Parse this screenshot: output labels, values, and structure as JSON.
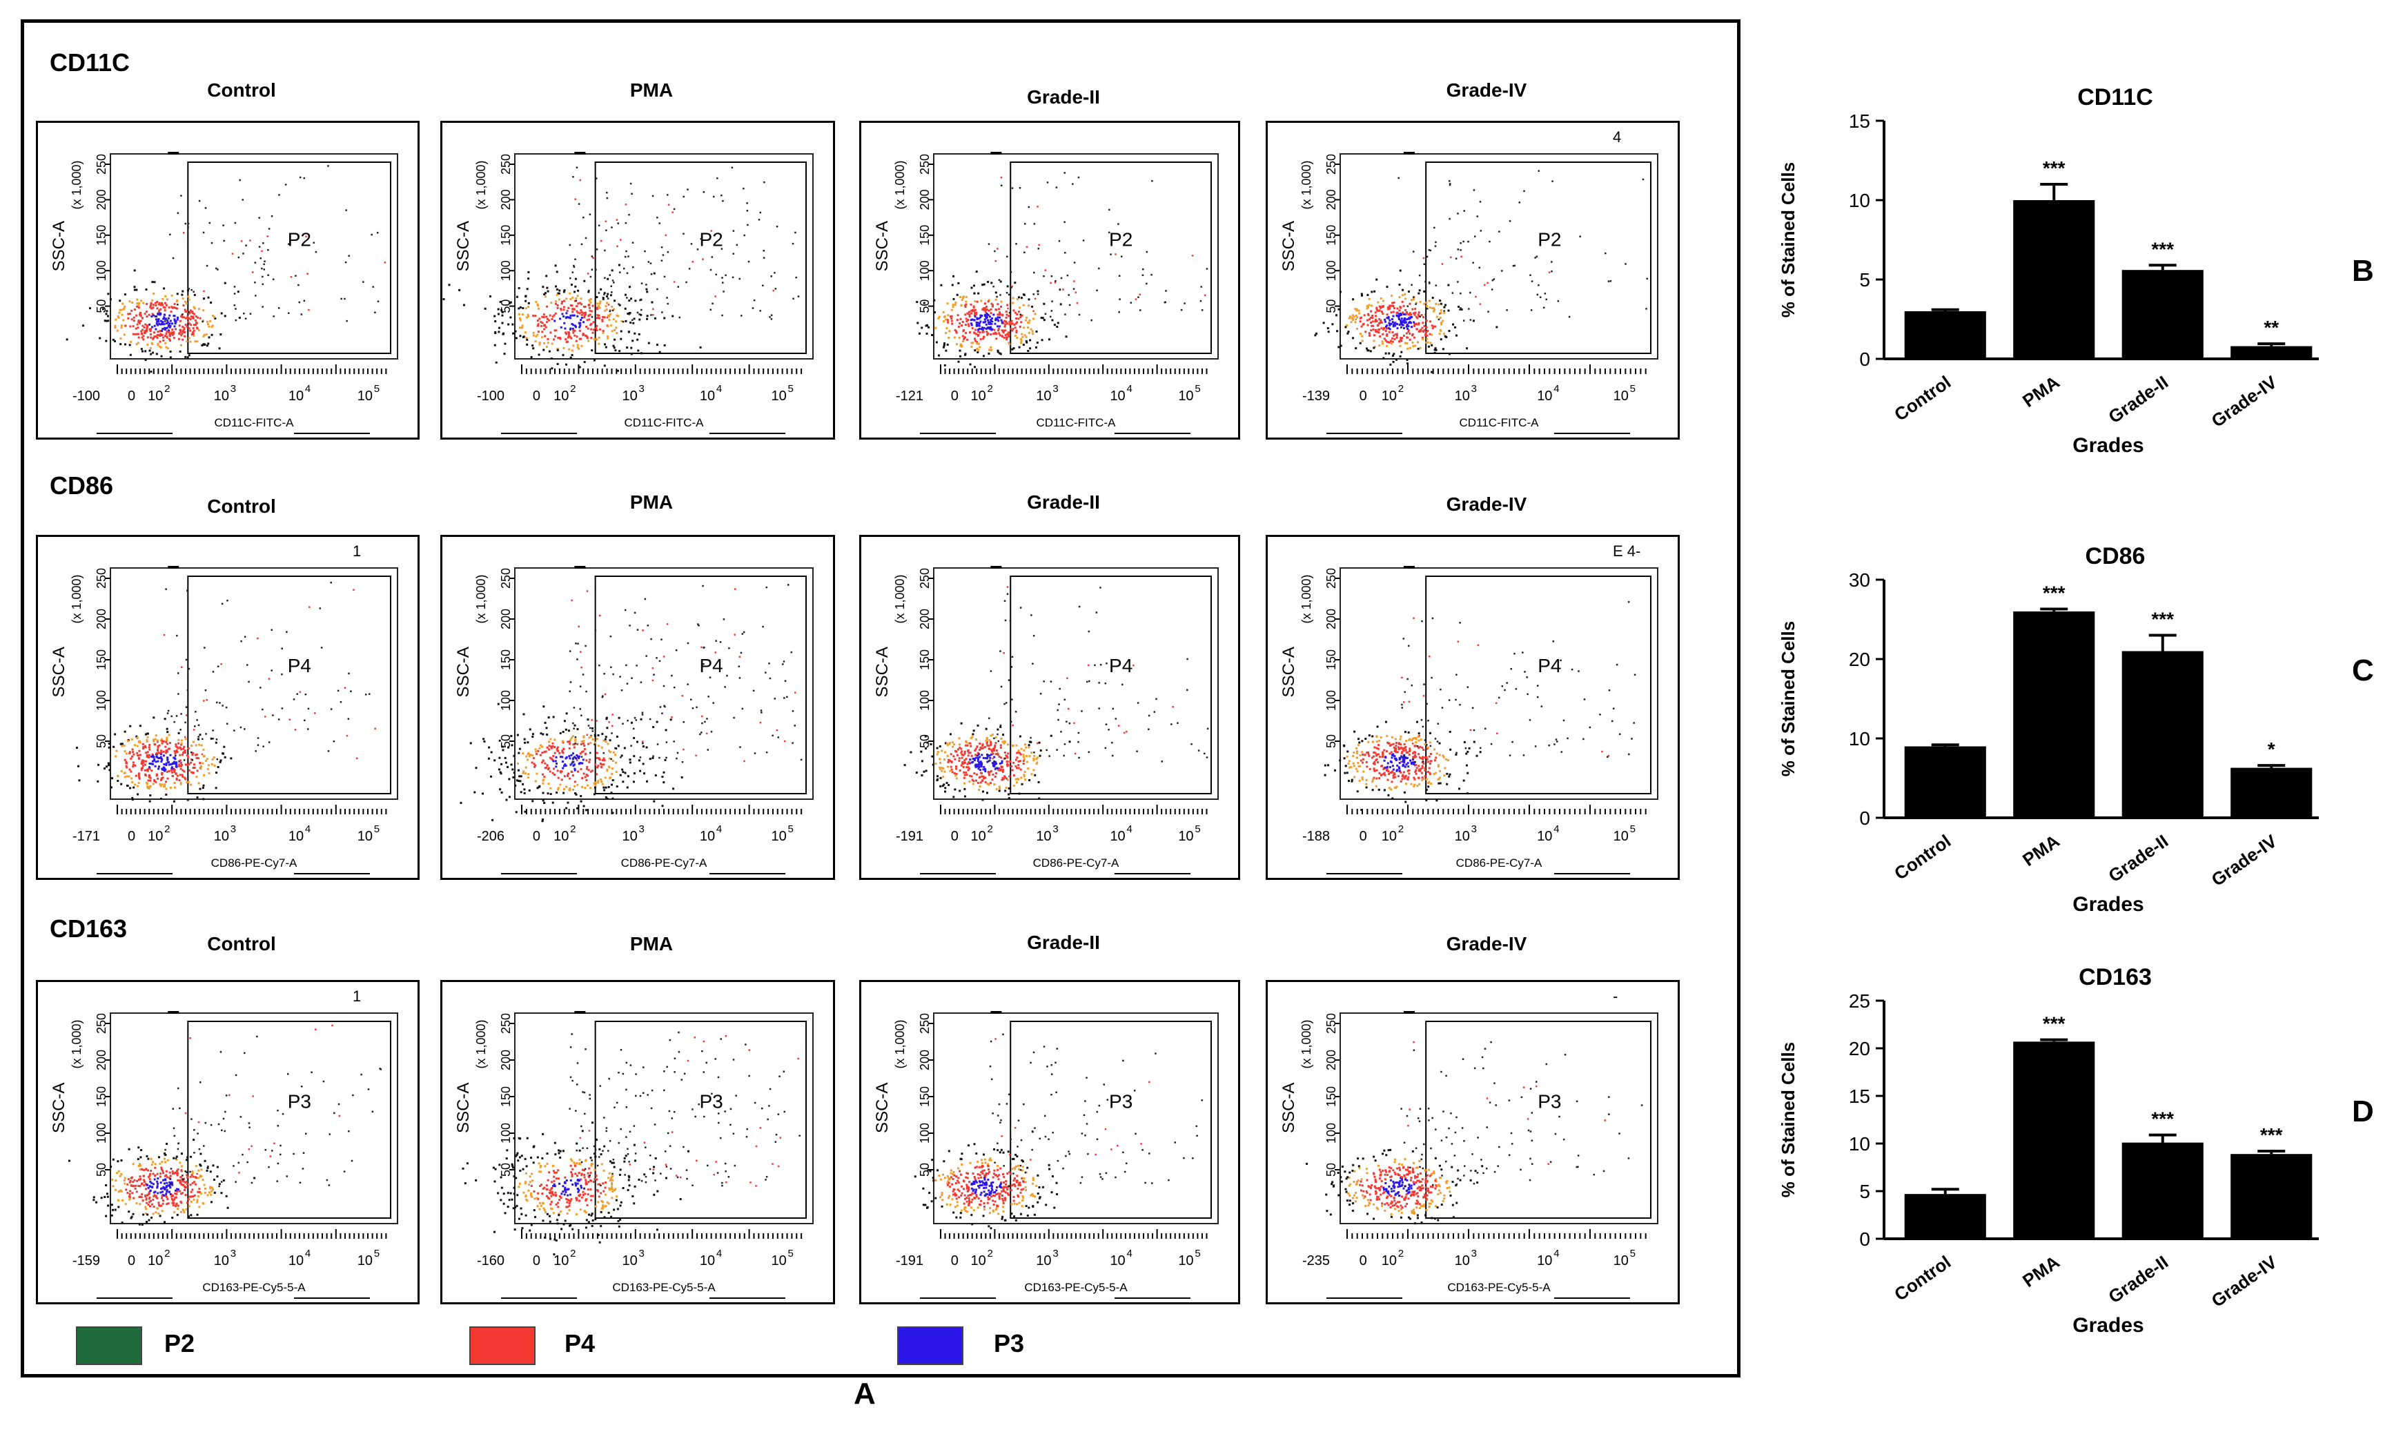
{
  "panel_labels": {
    "A": "A",
    "B": "B",
    "C": "C",
    "D": "D"
  },
  "legend": [
    {
      "label": "P2",
      "color": "#1f6b3c"
    },
    {
      "label": "P4",
      "color": "#f23a33"
    },
    {
      "label": "P3",
      "color": "#2a17e8"
    }
  ],
  "facs_axes": {
    "y_label": "SSC-A",
    "y_unit": "(x 1,000)",
    "y_ticks": [
      "250",
      "200",
      "150",
      "100",
      "50"
    ],
    "x_ticks_common": [
      "0",
      "10",
      "10",
      "10",
      "10"
    ],
    "x_exp": [
      "",
      "2",
      "3",
      "4",
      "5"
    ]
  },
  "facs_rows": [
    {
      "marker": "CD11C",
      "x_label": "CD11C-FITC-A",
      "gate": "P2",
      "plots": [
        {
          "condition": "Control",
          "x_min": "-100",
          "corner": ""
        },
        {
          "condition": "PMA",
          "x_min": "-100",
          "corner": ""
        },
        {
          "condition": "Grade-II",
          "x_min": "-121",
          "corner": ""
        },
        {
          "condition": "Grade-IV",
          "x_min": "-139",
          "corner": "4"
        }
      ]
    },
    {
      "marker": "CD86",
      "x_label": "CD86-PE-Cy7-A",
      "gate": "P4",
      "plots": [
        {
          "condition": "Control",
          "x_min": "-171",
          "corner": "1"
        },
        {
          "condition": "PMA",
          "x_min": "-206",
          "corner": ""
        },
        {
          "condition": "Grade-II",
          "x_min": "-191",
          "corner": ""
        },
        {
          "condition": "Grade-IV",
          "x_min": "-188",
          "corner": "E 4-"
        }
      ]
    },
    {
      "marker": "CD163",
      "x_label": "CD163-PE-Cy5-5-A",
      "gate": "P3",
      "plots": [
        {
          "condition": "Control",
          "x_min": "-159",
          "corner": "1"
        },
        {
          "condition": "PMA",
          "x_min": "-160",
          "corner": ""
        },
        {
          "condition": "Grade-II",
          "x_min": "-191",
          "corner": ""
        },
        {
          "condition": "Grade-IV",
          "x_min": "-235",
          "corner": "-"
        }
      ]
    }
  ],
  "chart_data": [
    {
      "type": "bar",
      "panel": "B",
      "title": "CD11C",
      "ylabel": "% of Stained Cells",
      "xlabel": "Grades",
      "categories": [
        "Control",
        "PMA",
        "Grade-II",
        "Grade-IV"
      ],
      "values": [
        3,
        10,
        5.6,
        0.8
      ],
      "errors": [
        0.1,
        1.0,
        0.3,
        0.15
      ],
      "significance": [
        "",
        "***",
        "***",
        "**"
      ],
      "ylim": [
        0,
        15
      ],
      "yticks": [
        0,
        5,
        10,
        15
      ]
    },
    {
      "type": "bar",
      "panel": "C",
      "title": "CD86",
      "ylabel": "% of Stained Cells",
      "xlabel": "Grades",
      "categories": [
        "Control",
        "PMA",
        "Grade-II",
        "Grade-IV"
      ],
      "values": [
        9,
        26,
        21,
        6.3
      ],
      "errors": [
        0.2,
        0.3,
        2.0,
        0.3
      ],
      "significance": [
        "",
        "***",
        "***",
        "*"
      ],
      "ylim": [
        0,
        30
      ],
      "yticks": [
        0,
        10,
        20,
        30
      ]
    },
    {
      "type": "bar",
      "panel": "D",
      "title": "CD163",
      "ylabel": "% of Stained Cells",
      "xlabel": "Grades",
      "categories": [
        "Control",
        "PMA",
        "Grade-II",
        "Grade-IV"
      ],
      "values": [
        4.7,
        20.7,
        10.1,
        8.9
      ],
      "errors": [
        0.5,
        0.2,
        0.8,
        0.3
      ],
      "significance": [
        "",
        "***",
        "***",
        "***"
      ],
      "ylim": [
        0,
        25
      ],
      "yticks": [
        0,
        5,
        10,
        15,
        20,
        25
      ]
    }
  ]
}
